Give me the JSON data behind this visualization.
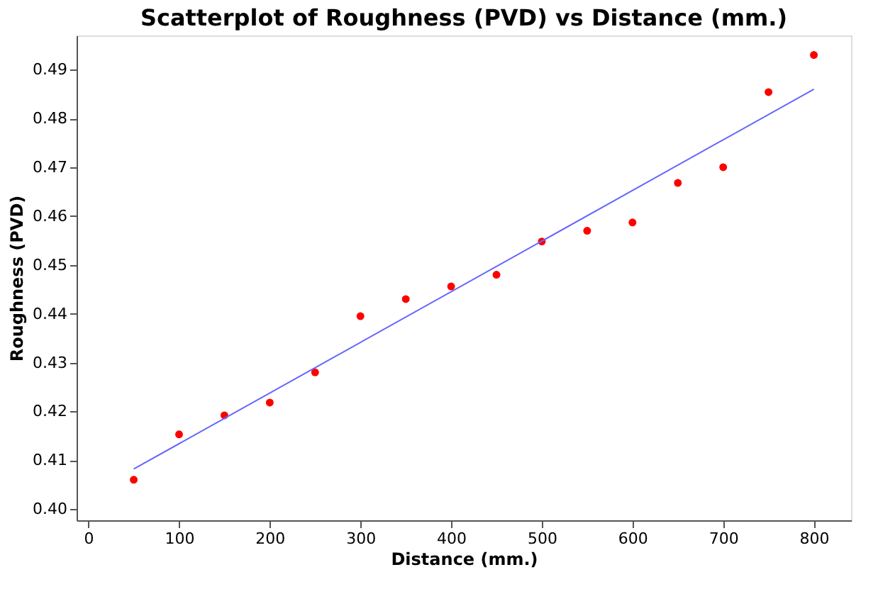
{
  "chart_data": {
    "type": "scatter",
    "title": "Scatterplot of Roughness (PVD) vs Distance (mm.)",
    "xlabel": "Distance (mm.)",
    "ylabel": "Roughness (PVD)",
    "x": [
      50,
      100,
      150,
      200,
      250,
      300,
      350,
      400,
      450,
      500,
      550,
      600,
      650,
      700,
      750,
      800
    ],
    "series": [
      {
        "color": "#ff0000",
        "values": [
          0.406,
          0.4153,
          0.4192,
          0.4218,
          0.428,
          0.4395,
          0.443,
          0.4456,
          0.448,
          0.4548,
          0.457,
          0.4587,
          0.4668,
          0.47,
          0.4854,
          0.493
        ]
      },
      {
        "type": "line",
        "marker": "none",
        "color": "#6666ff",
        "x": [
          50,
          800
        ],
        "values": [
          0.4082,
          0.486
        ]
      }
    ],
    "xlim": [
      -13,
      841
    ],
    "ylim": [
      0.3977,
      0.497
    ],
    "xticks": [
      0,
      100,
      200,
      300,
      400,
      500,
      600,
      700,
      800
    ],
    "yticks": [
      {
        "value": 0.4,
        "label": "0.40"
      },
      {
        "value": 0.41,
        "label": "0.41"
      },
      {
        "value": 0.42,
        "label": "0.42"
      },
      {
        "value": 0.43,
        "label": "0.43"
      },
      {
        "value": 0.44,
        "label": "0.44"
      },
      {
        "value": 0.45,
        "label": "0.45"
      },
      {
        "value": 0.46,
        "label": "0.46"
      },
      {
        "value": 0.47,
        "label": "0.47"
      },
      {
        "value": 0.48,
        "label": "0.48"
      },
      {
        "value": 0.49,
        "label": "0.49"
      }
    ],
    "grid": false,
    "marker": "circle"
  }
}
